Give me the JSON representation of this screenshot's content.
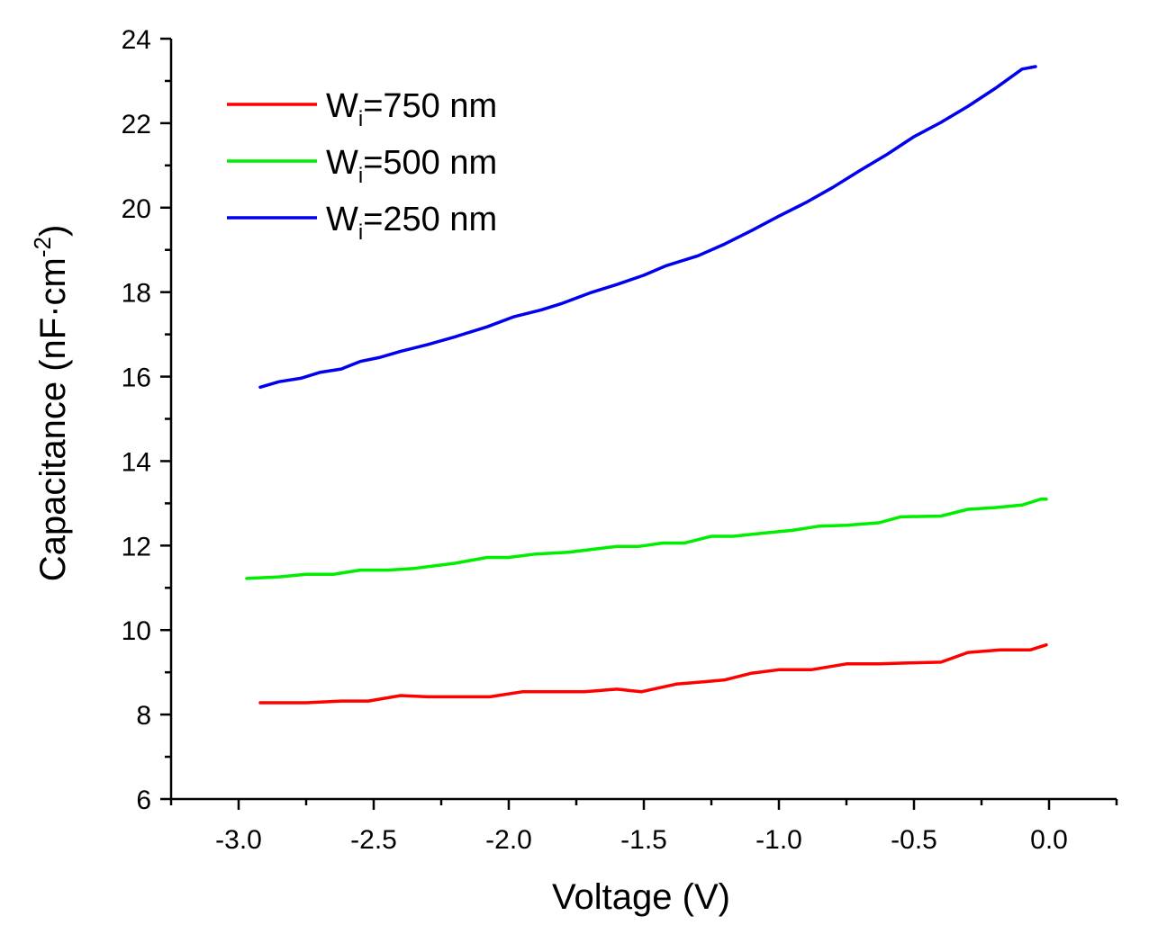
{
  "chart_data": {
    "type": "line",
    "title": "",
    "xlabel": "Voltage (V)",
    "ylabel_parts": [
      "Capacitance (nF·cm",
      "-2",
      ")"
    ],
    "xlim": [
      -3.25,
      0.25
    ],
    "ylim": [
      6,
      24
    ],
    "xticks": [
      -3.0,
      -2.5,
      -2.0,
      -1.5,
      -1.0,
      -0.5,
      0.0
    ],
    "xtick_labels": [
      "-3.0",
      "-2.5",
      "-2.0",
      "-1.5",
      "-1.0",
      "-0.5",
      "0.0"
    ],
    "yticks": [
      6,
      8,
      10,
      12,
      14,
      16,
      18,
      20,
      22,
      24
    ],
    "ytick_labels": [
      "6",
      "8",
      "10",
      "12",
      "14",
      "16",
      "18",
      "20",
      "22",
      "24"
    ],
    "grid": false,
    "legend_position": "top-left",
    "series": [
      {
        "name": "Wi=750 nm",
        "label_main": "W",
        "label_sub": "i",
        "label_rest": "=750 nm",
        "color": "#ff0000",
        "x": [
          -2.92,
          -2.85,
          -2.75,
          -2.62,
          -2.52,
          -2.4,
          -2.3,
          -2.18,
          -2.07,
          -1.95,
          -1.85,
          -1.72,
          -1.6,
          -1.51,
          -1.38,
          -1.27,
          -1.2,
          -1.1,
          -1.0,
          -0.88,
          -0.75,
          -0.63,
          -0.52,
          -0.4,
          -0.3,
          -0.18,
          -0.07,
          -0.01
        ],
        "y": [
          8.28,
          8.28,
          8.28,
          8.32,
          8.32,
          8.45,
          8.42,
          8.42,
          8.42,
          8.54,
          8.54,
          8.54,
          8.6,
          8.54,
          8.72,
          8.78,
          8.82,
          8.98,
          9.06,
          9.06,
          9.2,
          9.2,
          9.22,
          9.24,
          9.47,
          9.53,
          9.53,
          9.65
        ]
      },
      {
        "name": "Wi=500 nm",
        "label_main": "W",
        "label_sub": "i",
        "label_rest": "=500 nm",
        "color": "#00ee00",
        "x": [
          -2.97,
          -2.85,
          -2.75,
          -2.65,
          -2.55,
          -2.45,
          -2.35,
          -2.2,
          -2.08,
          -2.0,
          -1.9,
          -1.78,
          -1.68,
          -1.6,
          -1.52,
          -1.43,
          -1.35,
          -1.25,
          -1.17,
          -1.05,
          -0.95,
          -0.85,
          -0.75,
          -0.63,
          -0.55,
          -0.4,
          -0.3,
          -0.2,
          -0.1,
          -0.03,
          -0.01
        ],
        "y": [
          11.22,
          11.26,
          11.32,
          11.32,
          11.42,
          11.42,
          11.46,
          11.58,
          11.72,
          11.72,
          11.8,
          11.84,
          11.92,
          11.98,
          11.98,
          12.06,
          12.06,
          12.22,
          12.22,
          12.3,
          12.36,
          12.46,
          12.48,
          12.54,
          12.68,
          12.7,
          12.86,
          12.9,
          12.96,
          13.1,
          13.1
        ]
      },
      {
        "name": "Wi=250 nm",
        "label_main": "W",
        "label_sub": "i",
        "label_rest": "=250 nm",
        "color": "#0000ee",
        "x": [
          -2.92,
          -2.85,
          -2.77,
          -2.7,
          -2.62,
          -2.55,
          -2.48,
          -2.4,
          -2.3,
          -2.2,
          -2.08,
          -1.98,
          -1.88,
          -1.8,
          -1.7,
          -1.6,
          -1.5,
          -1.42,
          -1.3,
          -1.2,
          -1.1,
          -1.0,
          -0.9,
          -0.8,
          -0.7,
          -0.6,
          -0.5,
          -0.4,
          -0.3,
          -0.2,
          -0.1,
          -0.05
        ],
        "y": [
          15.75,
          15.88,
          15.96,
          16.1,
          16.18,
          16.36,
          16.45,
          16.6,
          16.76,
          16.94,
          17.18,
          17.42,
          17.58,
          17.74,
          17.98,
          18.18,
          18.4,
          18.62,
          18.86,
          19.14,
          19.46,
          19.8,
          20.12,
          20.48,
          20.88,
          21.26,
          21.68,
          22.02,
          22.4,
          22.82,
          23.28,
          23.34
        ]
      }
    ]
  }
}
